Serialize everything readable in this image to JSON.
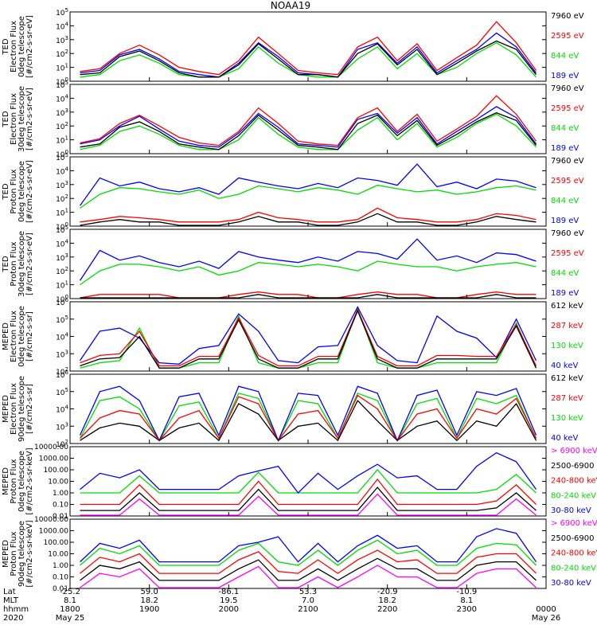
{
  "title": "NOAA19",
  "colors": {
    "blue": "#0000ff",
    "green": "#00dd00",
    "red": "#ff0000",
    "black": "#000000",
    "magenta": "#ff00ff"
  },
  "chart_data": [
    {
      "type": "line",
      "ylabel": [
        "TED",
        "Electron Flux",
        "0deg telescope",
        "[#/cm2-s-sr-eV]"
      ],
      "yscale": "log",
      "ylim": [
        1,
        100000
      ],
      "yticks": [
        "10^0",
        "10^1",
        "10^2",
        "10^3",
        "10^4",
        "10^5"
      ],
      "series": [
        {
          "name": "7960 eV",
          "color": "black"
        },
        {
          "name": "2595 eV",
          "color": "red"
        },
        {
          "name": "844 eV",
          "color": "green"
        },
        {
          "name": "189 eV",
          "color": "blue"
        }
      ],
      "data_y": {
        "blue": [
          4,
          6,
          80,
          200,
          40,
          5,
          3,
          2,
          20,
          600,
          60,
          4,
          3,
          2,
          200,
          600,
          20,
          300,
          4,
          30,
          200,
          3000,
          300,
          4
        ],
        "green": [
          2,
          3,
          30,
          80,
          20,
          3,
          2,
          2,
          8,
          300,
          20,
          3,
          2,
          2,
          40,
          300,
          8,
          100,
          3,
          10,
          100,
          600,
          80,
          2
        ],
        "red": [
          5,
          8,
          100,
          400,
          80,
          10,
          5,
          3,
          30,
          1500,
          100,
          6,
          4,
          3,
          300,
          1500,
          30,
          500,
          6,
          50,
          400,
          20000,
          600,
          6
        ],
        "black": [
          3,
          4,
          60,
          150,
          30,
          4,
          2,
          2,
          15,
          500,
          40,
          3,
          3,
          2,
          100,
          500,
          15,
          200,
          3,
          20,
          150,
          800,
          200,
          3
        ]
      }
    },
    {
      "type": "line",
      "ylabel": [
        "TED",
        "Electron Flux",
        "30deg telescope",
        "[#/cm2-s-sr-eV]"
      ],
      "yscale": "log",
      "ylim": [
        1,
        100000
      ],
      "yticks": [
        "10^0",
        "10^1",
        "10^2",
        "10^3",
        "10^4",
        "10^5"
      ],
      "series": [
        {
          "name": "7960 eV",
          "color": "black"
        },
        {
          "name": "2595 eV",
          "color": "red"
        },
        {
          "name": "844 eV",
          "color": "green"
        },
        {
          "name": "189 eV",
          "color": "blue"
        }
      ],
      "data_y": {
        "blue": [
          5,
          10,
          100,
          500,
          60,
          8,
          4,
          3,
          30,
          800,
          80,
          5,
          4,
          3,
          300,
          800,
          30,
          400,
          5,
          40,
          300,
          2500,
          400,
          5
        ],
        "green": [
          2,
          4,
          40,
          100,
          25,
          4,
          2,
          2,
          10,
          400,
          25,
          3,
          2,
          2,
          50,
          400,
          10,
          150,
          3,
          15,
          150,
          700,
          100,
          3
        ],
        "red": [
          6,
          12,
          150,
          600,
          100,
          15,
          6,
          4,
          40,
          2000,
          150,
          8,
          5,
          4,
          400,
          2000,
          40,
          700,
          8,
          60,
          500,
          15000,
          700,
          8
        ],
        "black": [
          3,
          5,
          80,
          200,
          40,
          5,
          3,
          2,
          20,
          600,
          50,
          4,
          3,
          2,
          150,
          600,
          20,
          250,
          4,
          25,
          200,
          900,
          250,
          4
        ]
      }
    },
    {
      "type": "line",
      "ylabel": [
        "TED",
        "Proton Flux",
        "0deg telescope",
        "[#/cm2-s-sr-eV]"
      ],
      "yscale": "log",
      "ylim": [
        1,
        100000
      ],
      "yticks": [
        "10^0",
        "10^1",
        "10^2",
        "10^3",
        "10^4",
        "10^5"
      ],
      "series": [
        {
          "name": "7960 eV",
          "color": "black"
        },
        {
          "name": "2595 eV",
          "color": "red"
        },
        {
          "name": "844 eV",
          "color": "green"
        },
        {
          "name": "189 eV",
          "color": "blue"
        }
      ],
      "data_y": {
        "blue": [
          30,
          3000,
          800,
          1500,
          500,
          300,
          600,
          200,
          3000,
          1500,
          800,
          500,
          1200,
          600,
          3000,
          2000,
          900,
          30000,
          700,
          1500,
          500,
          2500,
          1800,
          600
        ],
        "green": [
          20,
          200,
          600,
          500,
          300,
          200,
          400,
          100,
          200,
          800,
          500,
          300,
          600,
          400,
          200,
          900,
          500,
          300,
          400,
          200,
          300,
          600,
          800,
          400
        ],
        "red": [
          2,
          3,
          5,
          4,
          3,
          2,
          2,
          2,
          3,
          10,
          4,
          3,
          2,
          2,
          3,
          20,
          4,
          3,
          2,
          2,
          3,
          8,
          6,
          3
        ],
        "black": [
          1,
          2,
          3,
          2,
          2,
          1,
          1,
          1,
          2,
          5,
          2,
          2,
          1,
          1,
          2,
          8,
          2,
          2,
          1,
          1,
          2,
          5,
          3,
          2
        ]
      }
    },
    {
      "type": "line",
      "ylabel": [
        "TED",
        "Proton Flux",
        "30deg telescope",
        "[#/cm2-s-sr-eV]"
      ],
      "yscale": "log",
      "ylim": [
        1,
        100000
      ],
      "yticks": [
        "10^0",
        "10^1",
        "10^2",
        "10^3",
        "10^4",
        "10^5"
      ],
      "series": [
        {
          "name": "7960 eV",
          "color": "black"
        },
        {
          "name": "2595 eV",
          "color": "red"
        },
        {
          "name": "844 eV",
          "color": "green"
        },
        {
          "name": "189 eV",
          "color": "blue"
        }
      ],
      "data_y": {
        "blue": [
          20,
          3000,
          600,
          1200,
          400,
          200,
          500,
          150,
          2500,
          1000,
          600,
          400,
          1000,
          500,
          2500,
          1800,
          700,
          20000,
          600,
          1200,
          400,
          2000,
          1500,
          500
        ],
        "green": [
          10,
          100,
          300,
          300,
          200,
          100,
          200,
          50,
          100,
          400,
          300,
          200,
          300,
          200,
          100,
          500,
          300,
          200,
          200,
          100,
          200,
          300,
          400,
          200
        ],
        "red": [
          1,
          2,
          2,
          2,
          2,
          1,
          1,
          1,
          2,
          3,
          2,
          2,
          1,
          1,
          2,
          3,
          2,
          2,
          1,
          1,
          2,
          3,
          2,
          2
        ],
        "black": [
          1,
          1,
          1,
          1,
          1,
          1,
          1,
          1,
          1,
          2,
          1,
          1,
          1,
          1,
          1,
          2,
          1,
          1,
          1,
          1,
          1,
          2,
          1,
          1
        ]
      }
    },
    {
      "type": "line",
      "ylabel": [
        "MEPED",
        "Electron Flux",
        "0deg telescope",
        "[#/cm2-s-sr]"
      ],
      "yscale": "log",
      "ylim": [
        100,
        1000000
      ],
      "yticks": [
        "10^2",
        "10^3",
        "10^4",
        "10^5",
        "10^6"
      ],
      "series": [
        {
          "name": "612 keV",
          "color": "black"
        },
        {
          "name": "287 keV",
          "color": "red"
        },
        {
          "name": "130 keV",
          "color": "green"
        },
        {
          "name": "40 keV",
          "color": "blue"
        }
      ],
      "data_y": {
        "blue": [
          400,
          20000,
          30000,
          8000,
          300,
          250,
          2000,
          3000,
          200000,
          20000,
          400,
          300,
          2500,
          3000,
          500000,
          3000,
          400,
          300,
          150000,
          20000,
          8000,
          600,
          100000,
          400
        ],
        "green": [
          150,
          300,
          400,
          30000,
          150,
          150,
          300,
          300,
          150000,
          300,
          150,
          150,
          300,
          300,
          400000,
          300,
          150,
          150,
          300,
          300,
          300,
          300,
          60000,
          150
        ],
        "red": [
          300,
          800,
          1000,
          20000,
          200,
          200,
          700,
          700,
          120000,
          800,
          200,
          200,
          700,
          700,
          350000,
          700,
          200,
          200,
          800,
          800,
          700,
          700,
          50000,
          200
        ],
        "black": [
          200,
          500,
          600,
          10000,
          150,
          150,
          500,
          500,
          90000,
          500,
          150,
          150,
          500,
          500,
          300000,
          500,
          150,
          150,
          500,
          500,
          500,
          500,
          40000,
          150
        ]
      }
    },
    {
      "type": "line",
      "ylabel": [
        "MEPED",
        "Electron Flux",
        "90deg telescope",
        "[#/cm2-s-sr]"
      ],
      "yscale": "log",
      "ylim": [
        100,
        1000000
      ],
      "yticks": [
        "10^2",
        "10^3",
        "10^4",
        "10^5",
        "10^6"
      ],
      "series": [
        {
          "name": "612 keV",
          "color": "black"
        },
        {
          "name": "287 keV",
          "color": "red"
        },
        {
          "name": "130 keV",
          "color": "green"
        },
        {
          "name": "40 keV",
          "color": "blue"
        }
      ],
      "data_y": {
        "blue": [
          300,
          100000,
          200000,
          30000,
          150,
          50000,
          80000,
          300,
          200000,
          100000,
          150,
          80000,
          60000,
          300,
          200000,
          80000,
          150,
          60000,
          120000,
          300,
          100000,
          60000,
          150000,
          300
        ],
        "green": [
          200,
          30000,
          50000,
          10000,
          150,
          15000,
          25000,
          200,
          80000,
          40000,
          150,
          30000,
          20000,
          200,
          80000,
          30000,
          150,
          20000,
          40000,
          200,
          40000,
          20000,
          60000,
          200
        ],
        "red": [
          200,
          3000,
          8000,
          5000,
          150,
          3000,
          8000,
          200,
          50000,
          20000,
          150,
          5000,
          8000,
          200,
          60000,
          10000,
          150,
          5000,
          10000,
          200,
          10000,
          5000,
          40000,
          200
        ],
        "black": [
          150,
          800,
          1500,
          1000,
          150,
          800,
          1500,
          150,
          20000,
          5000,
          150,
          1000,
          1500,
          150,
          30000,
          2000,
          150,
          1000,
          2000,
          150,
          2000,
          1000,
          20000,
          150
        ]
      }
    },
    {
      "type": "line",
      "ylabel": [
        "MEPED",
        "Proton Flux",
        "0deg telescope",
        "[#/cm2-s-sr-keV]"
      ],
      "yscale": "log",
      "ylim": [
        0.01,
        10000
      ],
      "yticks": [
        "0.01",
        "0.10",
        "1.00",
        "10.00",
        "100.00",
        "1000.00",
        "10000.00"
      ],
      "series": [
        {
          "name": "> 6900 keV",
          "color": "magenta"
        },
        {
          "name": "2500-6900",
          "color": "black"
        },
        {
          "name": "240-800 keV",
          "color": "red"
        },
        {
          "name": "80-240 keV",
          "color": "green"
        },
        {
          "name": "30-80 keV",
          "color": "blue"
        }
      ],
      "data_y": {
        "blue": [
          2,
          50,
          20,
          100,
          2,
          2,
          2,
          2,
          30,
          80,
          200,
          1,
          50,
          2,
          30,
          300,
          20,
          30,
          2,
          2,
          200,
          3000,
          500,
          2
        ],
        "green": [
          1,
          1,
          1,
          30,
          1,
          1,
          1,
          1,
          1,
          60,
          1,
          1,
          1,
          1,
          1,
          100,
          1,
          1,
          1,
          1,
          1,
          2,
          40,
          1
        ],
        "red": [
          0.1,
          0.1,
          0.1,
          5,
          0.1,
          0.1,
          0.1,
          0.1,
          0.1,
          10,
          0.1,
          0.1,
          0.1,
          0.1,
          0.1,
          15,
          0.1,
          0.1,
          0.1,
          0.1,
          0.1,
          0.2,
          5,
          0.1
        ],
        "black": [
          0.03,
          0.03,
          0.03,
          1,
          0.03,
          0.03,
          0.03,
          0.03,
          0.03,
          2,
          0.03,
          0.03,
          0.03,
          0.03,
          0.03,
          3,
          0.03,
          0.03,
          0.03,
          0.03,
          0.03,
          0.05,
          1,
          0.03
        ],
        "magenta": [
          0.01,
          0.01,
          0.01,
          0.3,
          0.01,
          0.01,
          0.01,
          0.01,
          0.01,
          0.5,
          0.01,
          0.01,
          0.01,
          0.01,
          0.01,
          0.8,
          0.01,
          0.01,
          0.01,
          0.01,
          0.01,
          0.01,
          0.3,
          0.01
        ]
      }
    },
    {
      "type": "line",
      "ylabel": [
        "MEPED",
        "Proton Flux",
        "90deg telescope",
        "[#/cm2-s-sr-keV]"
      ],
      "yscale": "log",
      "ylim": [
        0.01,
        10000
      ],
      "yticks": [
        "0.01",
        "0.10",
        "1.00",
        "10.00",
        "100.00",
        "1000.00",
        "10000.00"
      ],
      "series": [
        {
          "name": "> 6900 keV",
          "color": "magenta"
        },
        {
          "name": "2500-6900",
          "color": "black"
        },
        {
          "name": "240-800 keV",
          "color": "red"
        },
        {
          "name": "80-240 keV",
          "color": "green"
        },
        {
          "name": "30-80 keV",
          "color": "blue"
        }
      ],
      "data_y": {
        "blue": [
          2,
          80,
          30,
          150,
          2,
          2,
          2,
          2,
          50,
          100,
          300,
          2,
          80,
          2,
          50,
          400,
          30,
          50,
          2,
          2,
          300,
          1500,
          600,
          2
        ],
        "green": [
          1,
          30,
          10,
          50,
          1,
          1,
          1,
          1,
          20,
          80,
          2,
          1,
          20,
          1,
          20,
          150,
          10,
          20,
          1,
          1,
          30,
          80,
          60,
          1
        ],
        "red": [
          0.2,
          5,
          2,
          10,
          0.2,
          0.2,
          0.2,
          0.2,
          3,
          15,
          0.3,
          0.2,
          3,
          0.2,
          3,
          20,
          2,
          3,
          0.2,
          0.2,
          5,
          10,
          10,
          0.2
        ],
        "black": [
          0.05,
          1,
          0.5,
          2,
          0.05,
          0.05,
          0.05,
          0.05,
          0.5,
          3,
          0.05,
          0.05,
          0.5,
          0.05,
          0.5,
          4,
          0.5,
          0.5,
          0.05,
          0.05,
          1,
          2,
          2,
          0.05
        ],
        "magenta": [
          0.01,
          0.2,
          0.1,
          0.5,
          0.01,
          0.01,
          0.01,
          0.01,
          0.1,
          0.8,
          0.01,
          0.01,
          0.1,
          0.01,
          0.1,
          1,
          0.1,
          0.1,
          0.01,
          0.01,
          0.2,
          0.5,
          0.5,
          0.01
        ]
      }
    }
  ],
  "xaxis": {
    "row_labels": [
      "Lat",
      "MLT",
      "hhmm",
      "2020"
    ],
    "ticks": [
      {
        "frac": 0.0,
        "lat": "-25.2",
        "mlt": "8.1",
        "hhmm": "1800",
        "date": "May 25"
      },
      {
        "frac": 0.1667,
        "lat": "59.0",
        "mlt": "18.2",
        "hhmm": "1900",
        "date": ""
      },
      {
        "frac": 0.3333,
        "lat": "-86.1",
        "mlt": "19.5",
        "hhmm": "2000",
        "date": ""
      },
      {
        "frac": 0.5,
        "lat": "53.3",
        "mlt": "7.0",
        "hhmm": "2100",
        "date": ""
      },
      {
        "frac": 0.6667,
        "lat": "-20.9",
        "mlt": "18.2",
        "hhmm": "2200",
        "date": ""
      },
      {
        "frac": 0.8333,
        "lat": "-10.9",
        "mlt": "8.1",
        "hhmm": "2300",
        "date": ""
      },
      {
        "frac": 1.0,
        "lat": "",
        "mlt": "",
        "hhmm": "0000",
        "date": "May 26"
      }
    ]
  }
}
